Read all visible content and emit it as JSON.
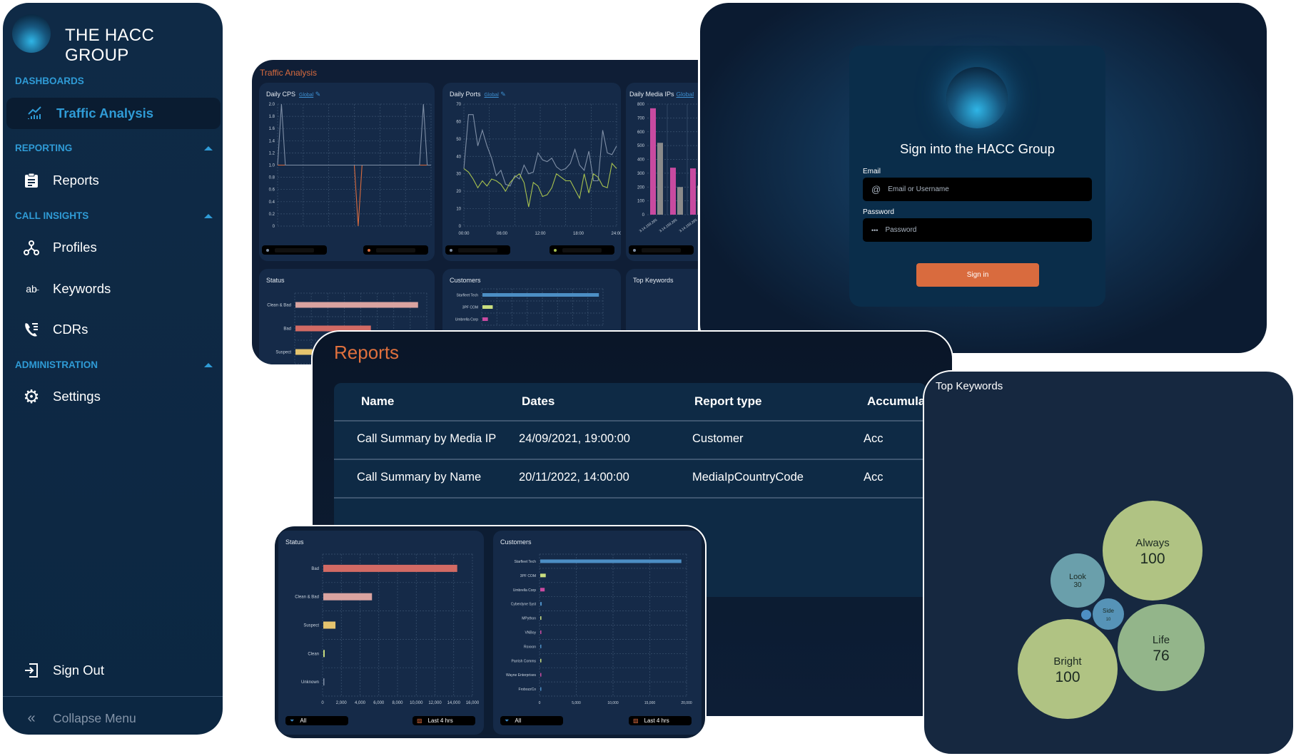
{
  "sidebar": {
    "brand": "THE HACC GROUP",
    "sections": [
      {
        "label": "DASHBOARDS"
      },
      {
        "label": "REPORTING"
      },
      {
        "label": "CALL INSIGHTS"
      },
      {
        "label": "ADMINISTRATION"
      }
    ],
    "items": [
      {
        "label": "Traffic Analysis",
        "icon": "chart-icon",
        "active": true
      },
      {
        "label": "Reports",
        "icon": "clipboard-icon"
      },
      {
        "label": "Profiles",
        "icon": "nodes-icon"
      },
      {
        "label": "Keywords",
        "icon": "text-ab-icon"
      },
      {
        "label": "CDRs",
        "icon": "phone-list-icon"
      },
      {
        "label": "Settings",
        "icon": "gear-icon"
      }
    ],
    "sign_out": "Sign Out",
    "collapse": "Collapse Menu",
    "accent": "#2f9bd6"
  },
  "traffic": {
    "title": "Traffic Analysis",
    "cards": {
      "cps": {
        "title": "Daily CPS",
        "link": "Global"
      },
      "ports": {
        "title": "Daily Ports",
        "link": "Global"
      },
      "media": {
        "title": "Daily Media IPs",
        "link": "Global"
      },
      "status": {
        "title": "Status"
      },
      "customers": {
        "title": "Customers"
      },
      "keywords": {
        "title": "Top Keywords"
      }
    }
  },
  "login": {
    "title": "Sign into the HACC Group",
    "email_label": "Email",
    "email_placeholder": "Email or Username",
    "password_label": "Password",
    "password_placeholder": "Password",
    "submit": "Sign in",
    "button_color": "#d96b3e"
  },
  "reports": {
    "title": "Reports",
    "columns": [
      "Name",
      "Dates",
      "Report type",
      "Accumula"
    ],
    "rows": [
      [
        "Call Summary by Media IP",
        "24/09/2021, 19:00:00",
        "Customer",
        "Acc"
      ],
      [
        "Call Summary by Name",
        "20/11/2022, 14:00:00",
        "MediaIpCountryCode",
        "Acc"
      ]
    ]
  },
  "lower": {
    "status_title": "Status",
    "customers_title": "Customers",
    "filter_label": "All",
    "range_label": "Last 4 hrs"
  },
  "keywords_card": {
    "title": "Top Keywords"
  },
  "chart_data": [
    {
      "id": "cps",
      "type": "line",
      "ylim": [
        0,
        2.0
      ],
      "yticks": [
        "0",
        "0.2",
        "0.4",
        "0.6",
        "0.8",
        "1.0",
        "1.2",
        "1.4",
        "1.6",
        "1.8",
        "2.0"
      ],
      "series": [
        {
          "color": "#d96b3e",
          "values": [
            1,
            1,
            1,
            1,
            1,
            1,
            1,
            1,
            1,
            1,
            1,
            1,
            1,
            1,
            1,
            1,
            1,
            1,
            1,
            1,
            1,
            0,
            1,
            1,
            1,
            1,
            1,
            1,
            1,
            1,
            1,
            1,
            1,
            1,
            1,
            1,
            1,
            1,
            1,
            1,
            1
          ]
        },
        {
          "color": "#7f8fa6",
          "values": [
            1,
            2,
            1,
            1,
            1,
            1,
            1,
            1,
            1,
            1,
            1,
            1,
            1,
            1,
            1,
            1,
            1,
            1,
            1,
            1,
            1,
            1,
            1,
            1,
            1,
            1,
            1,
            1,
            1,
            1,
            1,
            1,
            1,
            1,
            1,
            1,
            1,
            1,
            2,
            1,
            1
          ]
        }
      ]
    },
    {
      "id": "ports",
      "type": "line",
      "ylim": [
        0,
        70
      ],
      "yticks": [
        "0",
        "10",
        "20",
        "30",
        "40",
        "50",
        "60",
        "70"
      ],
      "xticks": [
        "00:00",
        "06:00",
        "12:00",
        "18:00",
        "24:00"
      ],
      "series": [
        {
          "color": "#7f8fa6",
          "values": [
            33,
            64,
            64,
            46,
            55,
            46,
            39,
            29,
            32,
            24,
            23,
            29,
            27,
            35,
            30,
            31,
            42,
            38,
            37,
            39,
            34,
            32,
            33,
            36,
            44,
            35,
            32,
            43,
            26,
            26,
            55,
            42,
            41,
            46
          ]
        },
        {
          "color": "#a7c24f",
          "values": [
            33,
            31,
            27,
            22,
            26,
            23,
            27,
            26,
            24,
            20,
            25,
            28,
            30,
            25,
            11,
            25,
            23,
            17,
            18,
            22,
            30,
            28,
            26,
            26,
            21,
            16,
            30,
            19,
            30,
            28,
            23,
            22,
            36,
            33
          ]
        }
      ]
    },
    {
      "id": "media",
      "type": "bar",
      "ylim": [
        0,
        800
      ],
      "yticks": [
        "0",
        "100",
        "200",
        "300",
        "400",
        "500",
        "600",
        "700",
        "800"
      ],
      "categories": [
        "3.14.159.265",
        "3.14.159.265",
        "3.14.159.265",
        "3.14.159.2"
      ],
      "series": [
        {
          "color": "#c84aa0",
          "values": [
            770,
            340,
            335,
            330
          ]
        },
        {
          "color": "#8a8a8a",
          "values": [
            520,
            200,
            210,
            200
          ]
        }
      ]
    },
    {
      "id": "status_small",
      "type": "hbar",
      "xlim": [
        0,
        14000
      ],
      "categories": [
        "Clean & Bad",
        "Bad",
        "Suspect"
      ],
      "values": [
        13000,
        8000,
        1800
      ],
      "colors": [
        "#d9a3a0",
        "#d26a64",
        "#e5c46e"
      ]
    },
    {
      "id": "customers_small",
      "type": "hbar",
      "xlim": [
        0,
        20000
      ],
      "categories": [
        "Starfleet Tech",
        "3PF COM",
        "Umbrella Corp"
      ],
      "values": [
        19200,
        1700,
        900
      ],
      "colors": [
        "#4c8ec4",
        "#c9de7f",
        "#c84aa0"
      ]
    },
    {
      "id": "status",
      "type": "hbar",
      "xlim": [
        0,
        16000
      ],
      "xticks": [
        "0",
        "2,000",
        "4,000",
        "6,000",
        "8,000",
        "10,000",
        "12,000",
        "14,000",
        "16,000"
      ],
      "categories": [
        "Bad",
        "Clean & Bad",
        "Suspect",
        "Clean",
        "Unknown"
      ],
      "values": [
        14300,
        5200,
        1300,
        150,
        20
      ],
      "colors": [
        "#d26a64",
        "#d9a3a0",
        "#e5c46e",
        "#c9de7f",
        "#7f8fa6"
      ]
    },
    {
      "id": "customers",
      "type": "hbar",
      "xlim": [
        0,
        20000
      ],
      "xticks": [
        "0",
        "5,000",
        "10,000",
        "15,000",
        "20,000"
      ],
      "categories": [
        "Starfleet Tech",
        "3PF COM",
        "Umbrella Corp",
        "Cyberdyne Syst",
        "MPython",
        "VNBoy",
        "Roxxon",
        "Parrish Comms",
        "Wayne Enterprises",
        "FrobozzCo"
      ],
      "values": [
        19200,
        750,
        600,
        200,
        150,
        150,
        50,
        50,
        30,
        30
      ],
      "colors": [
        "#4c8ec4",
        "#c9de7f",
        "#c84aa0",
        "#4c8ec4",
        "#c9de7f",
        "#c84aa0",
        "#4c8ec4",
        "#c9de7f",
        "#c84aa0",
        "#4c8ec4"
      ]
    },
    {
      "id": "keywords",
      "type": "bubble",
      "items": [
        {
          "label": "Always",
          "value": 100,
          "color": "#b0c383"
        },
        {
          "label": "Look",
          "value": 30,
          "color": "#6a9fab"
        },
        {
          "label": "Side",
          "value": 10,
          "color": "#5693b7"
        },
        {
          "label": "",
          "value": 1,
          "color": "#4e8fc4"
        },
        {
          "label": "Bright",
          "value": 100,
          "color": "#b0c383"
        },
        {
          "label": "Life",
          "value": 76,
          "color": "#93b58a"
        }
      ]
    }
  ]
}
